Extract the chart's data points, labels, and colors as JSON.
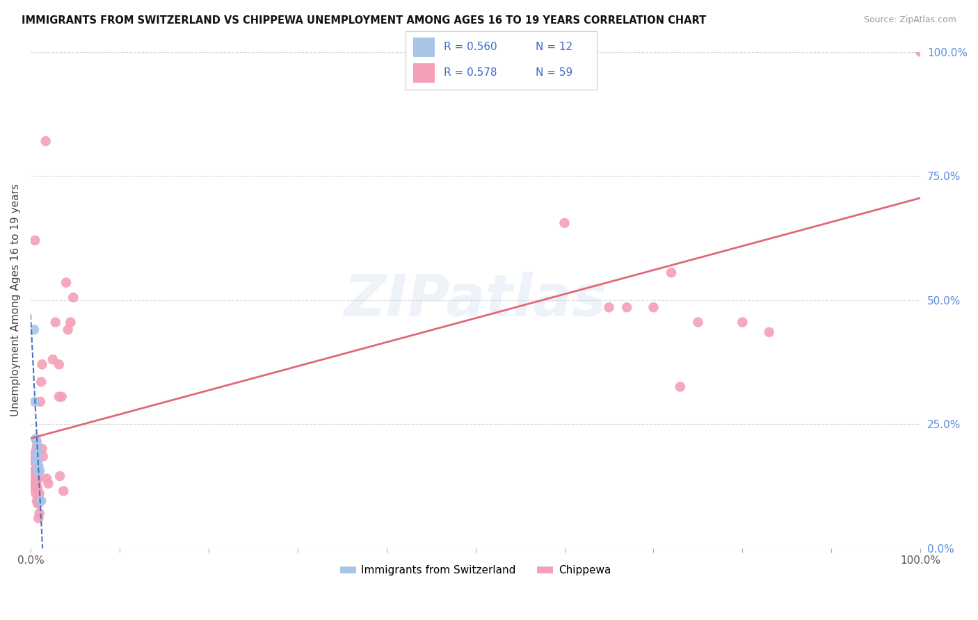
{
  "title": "IMMIGRANTS FROM SWITZERLAND VS CHIPPEWA UNEMPLOYMENT AMONG AGES 16 TO 19 YEARS CORRELATION CHART",
  "source": "Source: ZipAtlas.com",
  "ylabel": "Unemployment Among Ages 16 to 19 years",
  "xlim": [
    0,
    1.0
  ],
  "ylim": [
    0,
    1.0
  ],
  "x_tick_positions": [
    0.0,
    0.1,
    0.2,
    0.3,
    0.4,
    0.5,
    0.6,
    0.7,
    0.8,
    0.9,
    1.0
  ],
  "x_tick_labels": [
    "0.0%",
    "",
    "",
    "",
    "",
    "",
    "",
    "",
    "",
    "",
    "100.0%"
  ],
  "y_ticks_right": [
    0.0,
    0.25,
    0.5,
    0.75,
    1.0
  ],
  "y_tick_labels_right": [
    "0.0%",
    "25.0%",
    "50.0%",
    "75.0%",
    "100.0%"
  ],
  "legend_r1": "R = 0.560",
  "legend_n1": "N = 12",
  "legend_r2": "R = 0.578",
  "legend_n2": "N = 59",
  "blue_color": "#aac4e8",
  "blue_line_color": "#4472C4",
  "pink_color": "#f4a0b8",
  "pink_line_color": "#e06878",
  "scatter_blue": [
    [
      0.004,
      0.44
    ],
    [
      0.005,
      0.295
    ],
    [
      0.006,
      0.22
    ],
    [
      0.007,
      0.215
    ],
    [
      0.007,
      0.19
    ],
    [
      0.007,
      0.175
    ],
    [
      0.008,
      0.2
    ],
    [
      0.008,
      0.175
    ],
    [
      0.008,
      0.155
    ],
    [
      0.009,
      0.165
    ],
    [
      0.01,
      0.155
    ],
    [
      0.012,
      0.095
    ]
  ],
  "scatter_pink": [
    [
      0.003,
      0.175
    ],
    [
      0.004,
      0.155
    ],
    [
      0.004,
      0.13
    ],
    [
      0.004,
      0.12
    ],
    [
      0.005,
      0.62
    ],
    [
      0.005,
      0.19
    ],
    [
      0.005,
      0.175
    ],
    [
      0.005,
      0.155
    ],
    [
      0.005,
      0.14
    ],
    [
      0.006,
      0.195
    ],
    [
      0.006,
      0.155
    ],
    [
      0.006,
      0.135
    ],
    [
      0.006,
      0.125
    ],
    [
      0.006,
      0.11
    ],
    [
      0.007,
      0.205
    ],
    [
      0.007,
      0.175
    ],
    [
      0.007,
      0.16
    ],
    [
      0.007,
      0.14
    ],
    [
      0.007,
      0.13
    ],
    [
      0.007,
      0.095
    ],
    [
      0.008,
      0.14
    ],
    [
      0.008,
      0.12
    ],
    [
      0.008,
      0.09
    ],
    [
      0.009,
      0.09
    ],
    [
      0.009,
      0.06
    ],
    [
      0.01,
      0.155
    ],
    [
      0.01,
      0.11
    ],
    [
      0.01,
      0.095
    ],
    [
      0.01,
      0.07
    ],
    [
      0.011,
      0.295
    ],
    [
      0.012,
      0.335
    ],
    [
      0.013,
      0.37
    ],
    [
      0.013,
      0.2
    ],
    [
      0.014,
      0.185
    ],
    [
      0.017,
      0.82
    ],
    [
      0.018,
      0.14
    ],
    [
      0.02,
      0.13
    ],
    [
      0.025,
      0.38
    ],
    [
      0.028,
      0.455
    ],
    [
      0.032,
      0.37
    ],
    [
      0.032,
      0.305
    ],
    [
      0.033,
      0.145
    ],
    [
      0.035,
      0.305
    ],
    [
      0.037,
      0.115
    ],
    [
      0.04,
      0.535
    ],
    [
      0.042,
      0.44
    ],
    [
      0.045,
      0.455
    ],
    [
      0.048,
      0.505
    ],
    [
      0.5,
      1.0
    ],
    [
      0.6,
      0.655
    ],
    [
      0.65,
      0.485
    ],
    [
      0.67,
      0.485
    ],
    [
      0.7,
      0.485
    ],
    [
      0.72,
      0.555
    ],
    [
      0.73,
      0.325
    ],
    [
      0.75,
      0.455
    ],
    [
      0.8,
      0.455
    ],
    [
      0.83,
      0.435
    ],
    [
      1.0,
      1.0
    ]
  ],
  "background_color": "#ffffff",
  "grid_color": "#d8d8d8"
}
